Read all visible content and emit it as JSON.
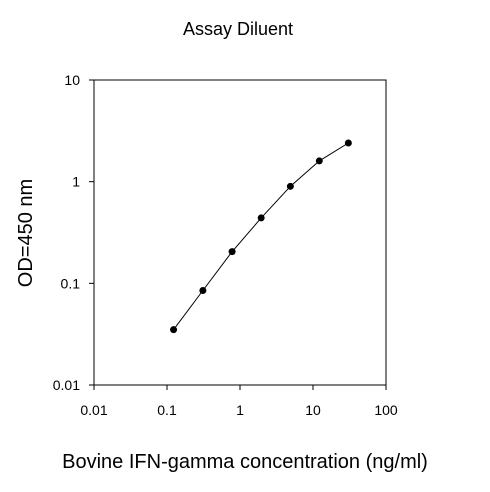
{
  "chart_data": {
    "type": "line",
    "title": "Assay Diluent",
    "xlabel": "Bovine IFN-gamma concentration (ng/ml)",
    "ylabel": "OD=450 nm",
    "xscale": "log",
    "yscale": "log",
    "xlim": [
      0.01,
      100
    ],
    "ylim": [
      0.01,
      10
    ],
    "x_ticks": [
      "0.01",
      "0.1",
      "1",
      "10",
      "100"
    ],
    "y_ticks": [
      "0.01",
      "0.1",
      "1",
      "10"
    ],
    "grid": false,
    "legend": "none",
    "series": [
      {
        "x": [
          0.123,
          0.31,
          0.78,
          1.95,
          4.9,
          12.2,
          30.5
        ],
        "y": [
          0.035,
          0.085,
          0.205,
          0.44,
          0.9,
          1.6,
          2.4
        ]
      }
    ],
    "colors": {
      "line": "#000000",
      "marker": "#000000"
    }
  }
}
